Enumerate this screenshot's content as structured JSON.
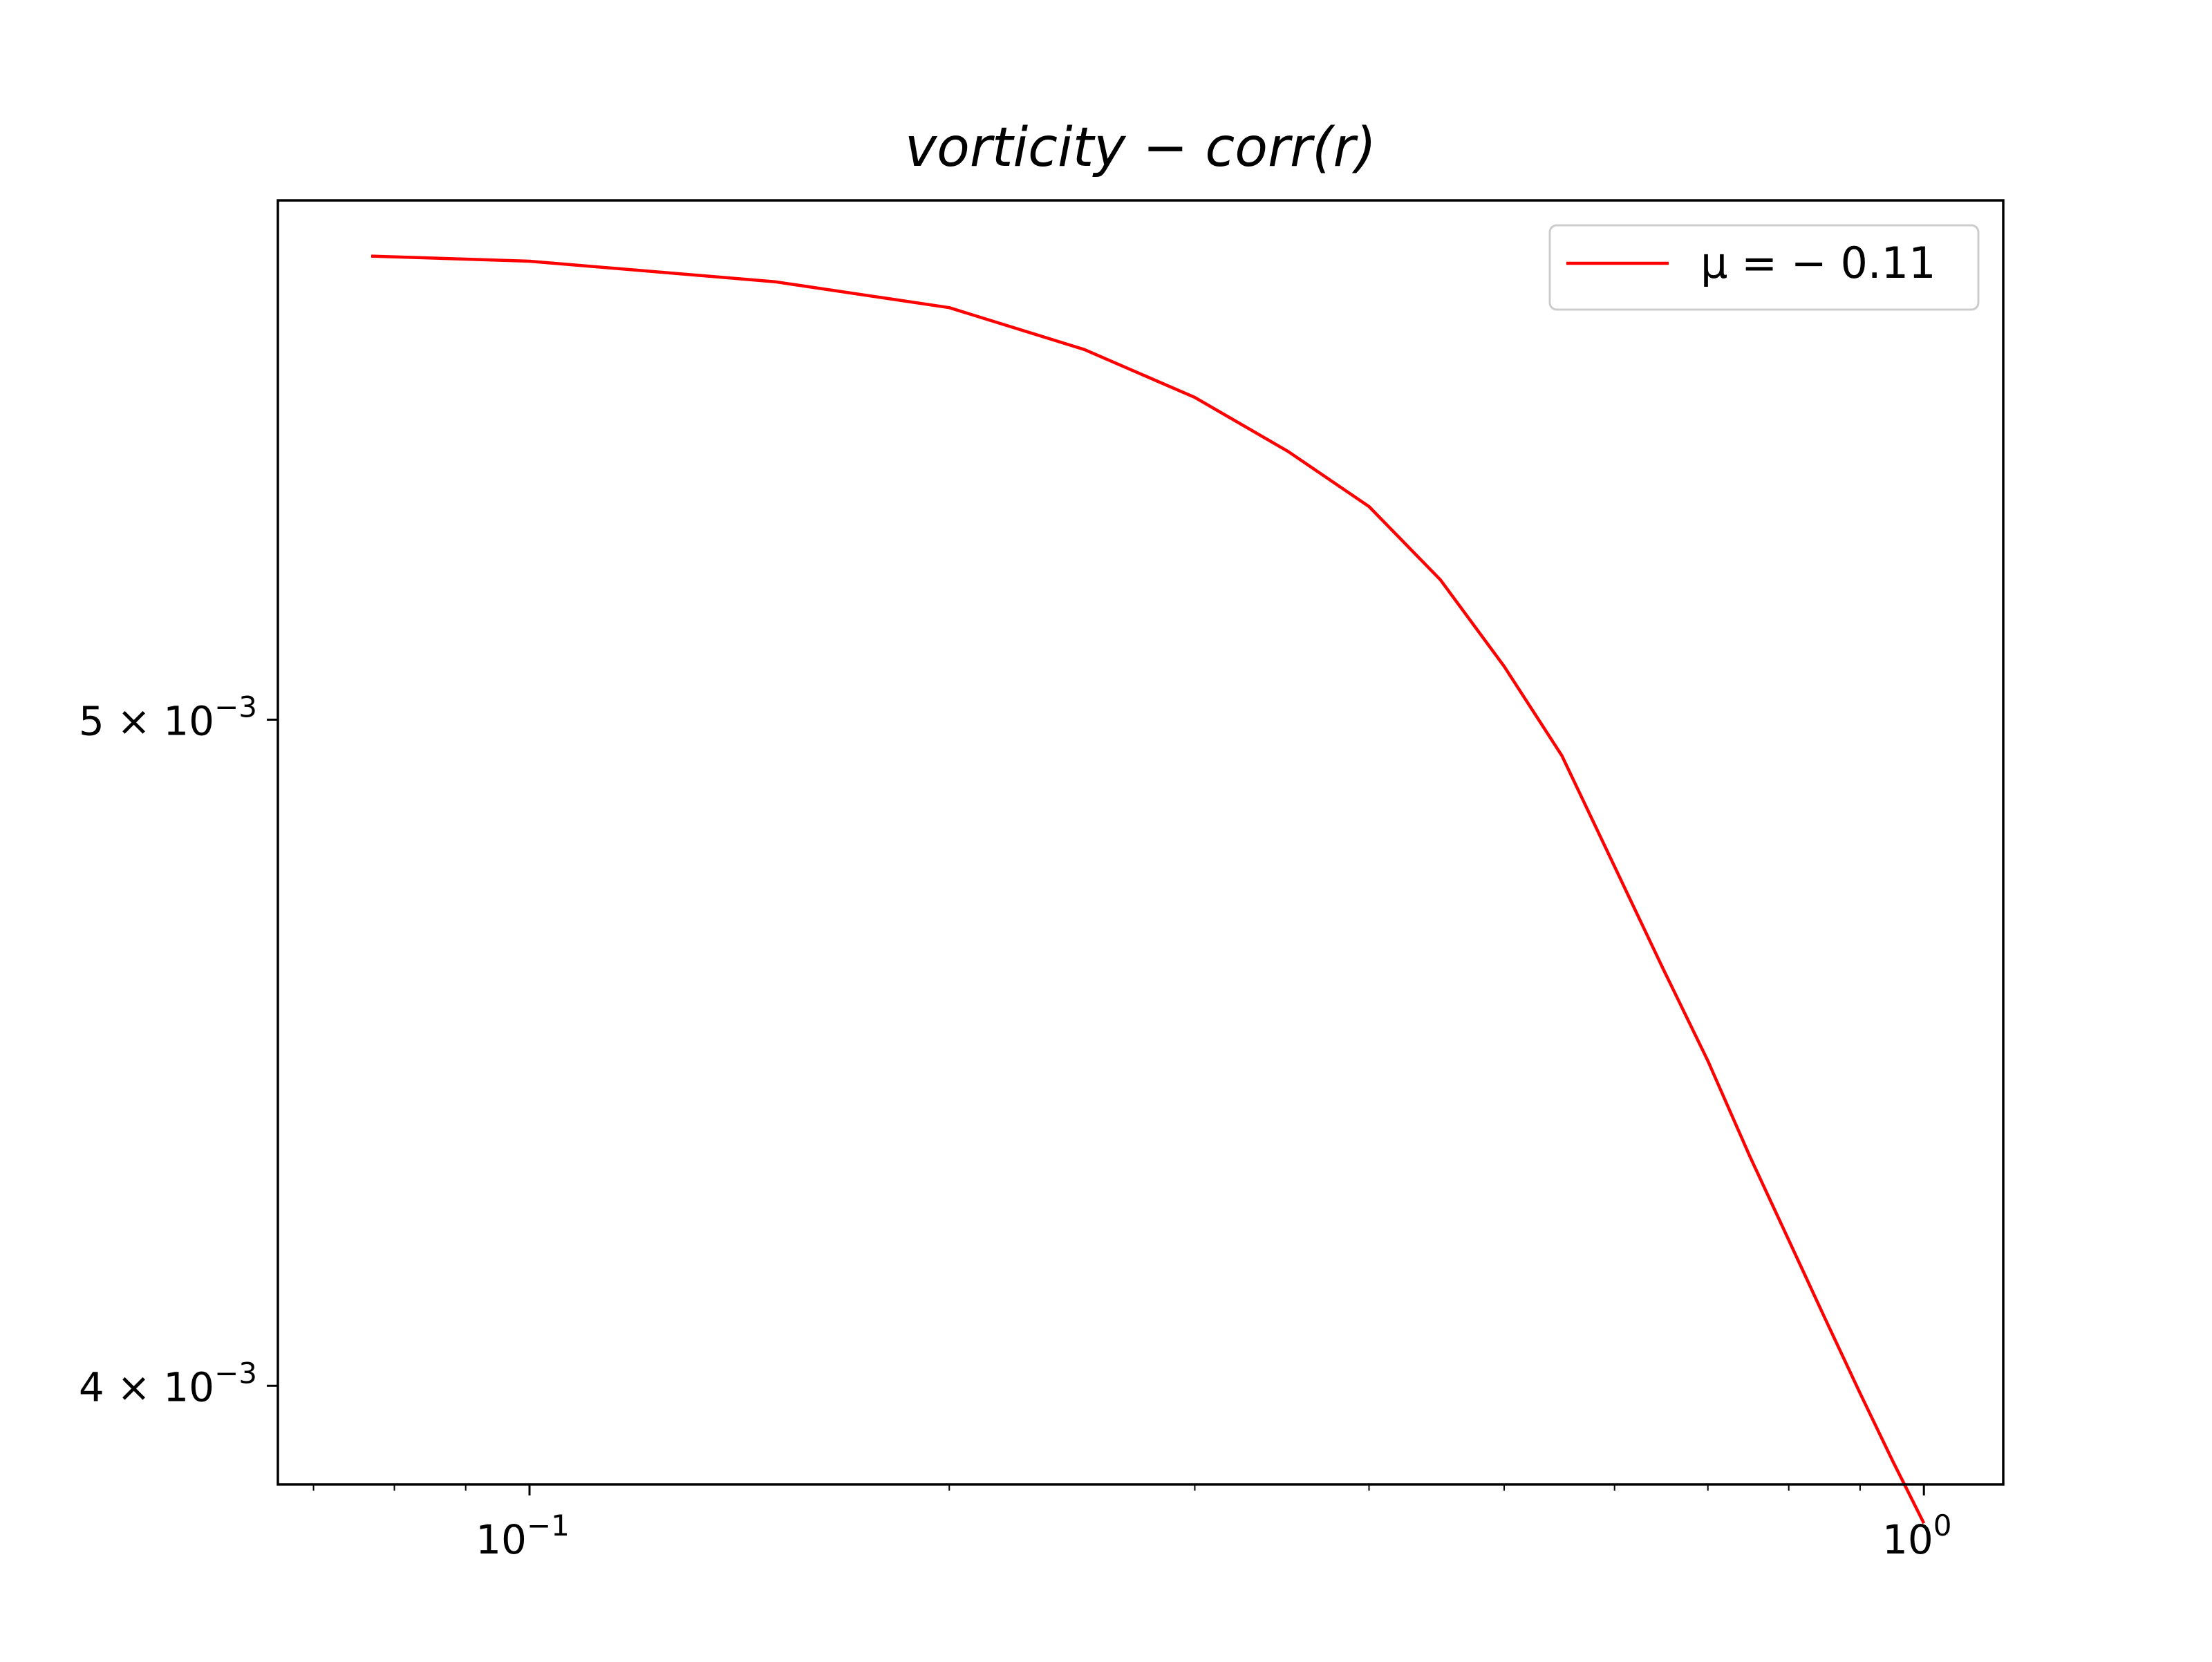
{
  "chart_data": {
    "type": "line",
    "title": "vorticity − corr(r)",
    "xlabel": "",
    "ylabel": "",
    "xscale": "log",
    "yscale": "log",
    "xlim": [
      0.066,
      1.14
    ],
    "ylim": [
      0.00387,
      0.00595
    ],
    "grid": false,
    "legend": {
      "placement": "top-right"
    },
    "x_ticks": [
      {
        "value": 0.1,
        "base": "10",
        "exp": "−1"
      },
      {
        "value": 1.0,
        "base": "10",
        "exp": "0"
      }
    ],
    "y_ticks": [
      {
        "value": 0.004,
        "base": "4 × 10",
        "exp": "−3"
      },
      {
        "value": 0.005,
        "base": "5 × 10",
        "exp": "−3"
      }
    ],
    "series": [
      {
        "name": "μ = − 0.11",
        "color": "#ff0000",
        "x": [
          0.077,
          0.1,
          0.15,
          0.2,
          0.25,
          0.3,
          0.35,
          0.4,
          0.45,
          0.5,
          0.55,
          0.6,
          0.65,
          0.7,
          0.75,
          0.8,
          0.85,
          0.9,
          0.95,
          1.0
        ],
        "y": [
          0.00584,
          0.00583,
          0.00579,
          0.00574,
          0.00566,
          0.00557,
          0.00547,
          0.00537,
          0.00524,
          0.00509,
          0.00494,
          0.00476,
          0.0046,
          0.00446,
          0.00432,
          0.0042,
          0.00409,
          0.00399,
          0.0039,
          0.00382
        ]
      }
    ]
  }
}
